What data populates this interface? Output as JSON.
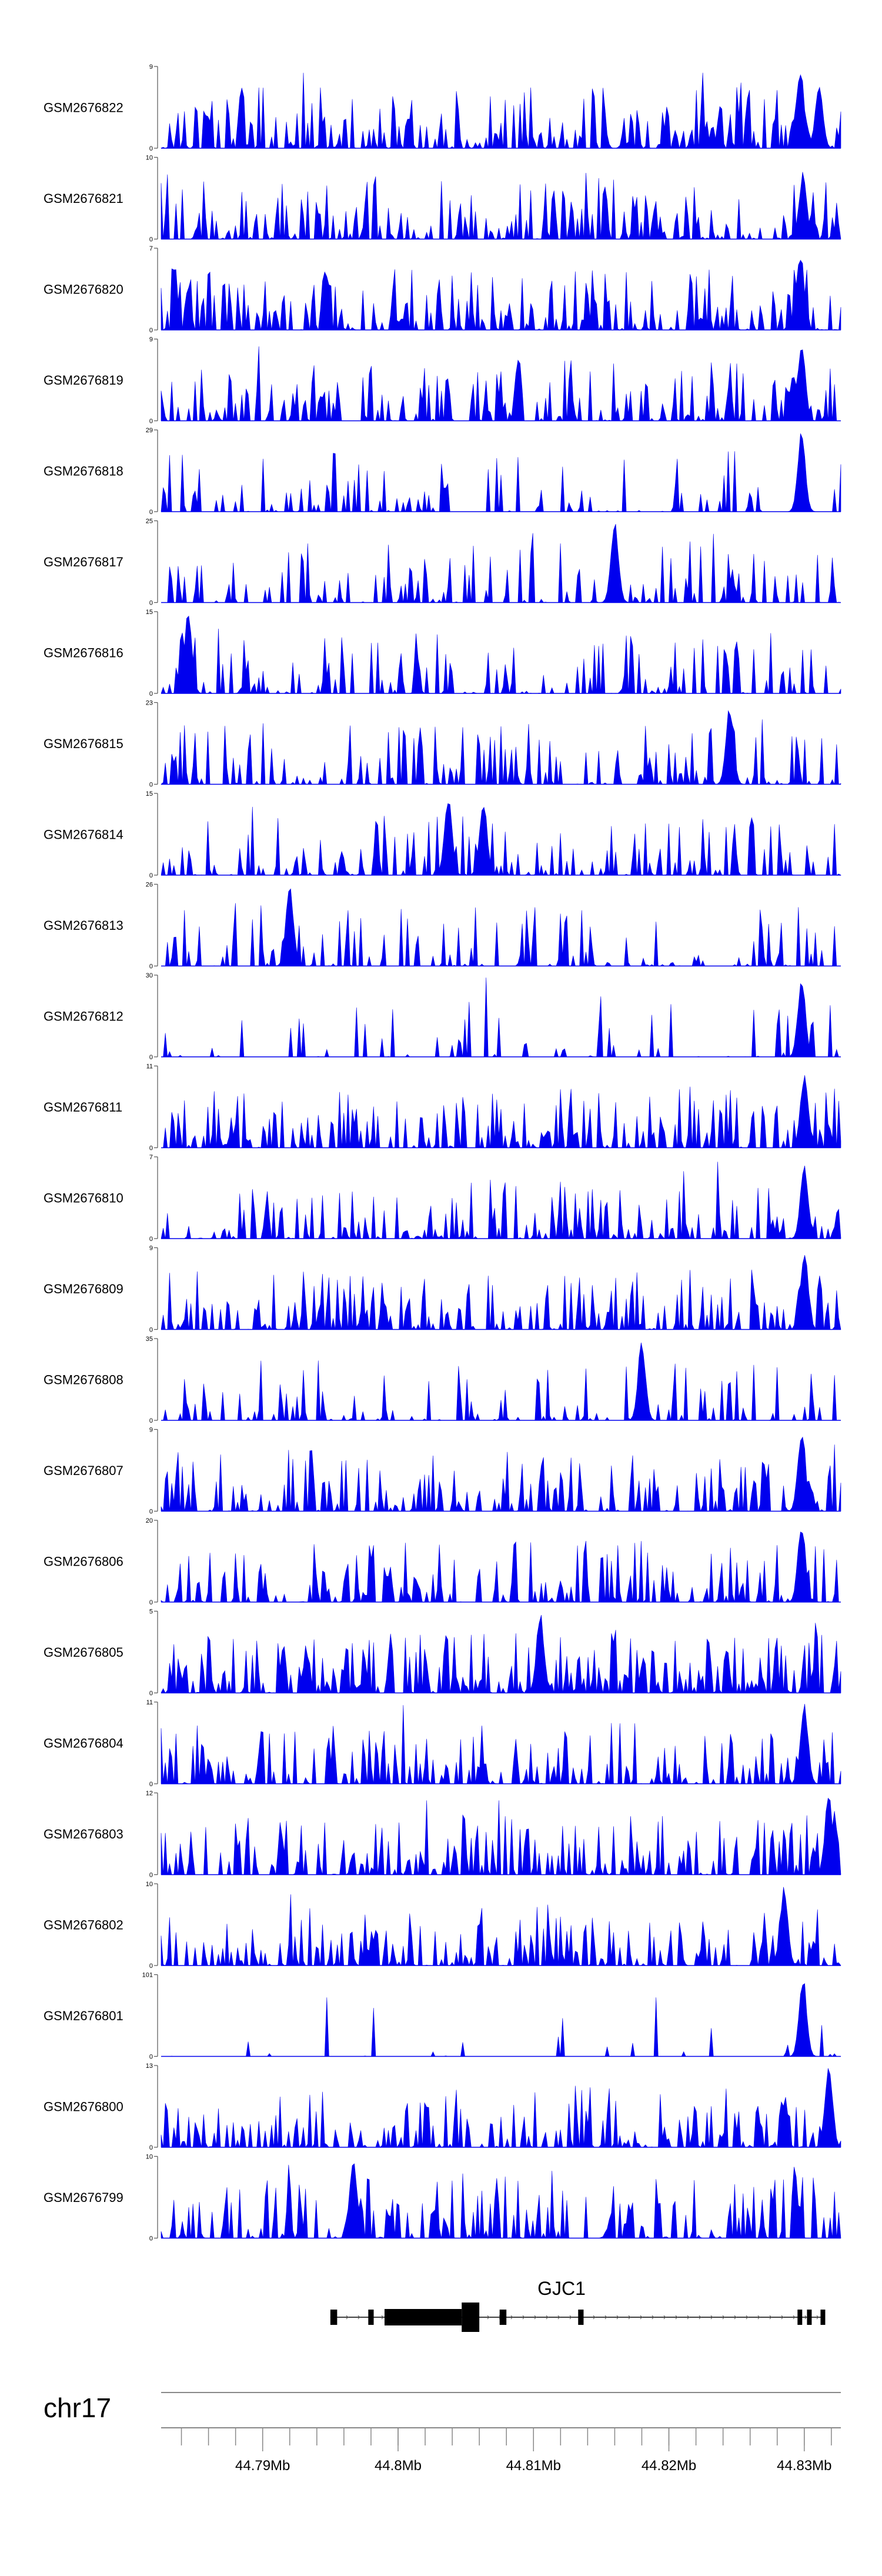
{
  "chart_data": {
    "type": "area",
    "color": "#0000ee",
    "chromosome": "chr17",
    "xlim": [
      44.7825,
      44.8327
    ],
    "x_ticks": [
      {
        "value": 44.79,
        "label": "44.79Mb"
      },
      {
        "value": 44.8,
        "label": "44.8Mb"
      },
      {
        "value": 44.81,
        "label": "44.81Mb"
      },
      {
        "value": 44.82,
        "label": "44.82Mb"
      },
      {
        "value": 44.83,
        "label": "44.83Mb"
      }
    ],
    "minor_tick_step": 0.002,
    "tracks": [
      {
        "name": "GSM2676822",
        "ymax": 9,
        "ymin": 0,
        "density": 0.75,
        "peaks": [
          {
            "x": 44.8297,
            "h": 1.0
          },
          {
            "x": 44.8311,
            "h": 0.8
          }
        ]
      },
      {
        "name": "GSM2676821",
        "ymax": 10,
        "ymin": 0,
        "density": 0.65,
        "peaks": [
          {
            "x": 44.8299,
            "h": 0.85
          }
        ]
      },
      {
        "name": "GSM2676820",
        "ymax": 7,
        "ymin": 0,
        "density": 0.65,
        "peaks": [
          {
            "x": 44.8297,
            "h": 1.0
          }
        ]
      },
      {
        "name": "GSM2676819",
        "ymax": 9,
        "ymin": 0,
        "density": 0.55,
        "peaks": [
          {
            "x": 44.8298,
            "h": 1.0
          },
          {
            "x": 44.8292,
            "h": 0.6
          }
        ]
      },
      {
        "name": "GSM2676818",
        "ymax": 29,
        "ymin": 0,
        "density": 0.3,
        "peaks": [
          {
            "x": 44.8298,
            "h": 1.0
          }
        ]
      },
      {
        "name": "GSM2676817",
        "ymax": 25,
        "ymin": 0,
        "density": 0.4,
        "peaks": [
          {
            "x": 44.816,
            "h": 1.0
          }
        ]
      },
      {
        "name": "GSM2676816",
        "ymax": 15,
        "ymin": 0,
        "density": 0.5,
        "peaks": [
          {
            "x": 44.7845,
            "h": 1.0
          }
        ]
      },
      {
        "name": "GSM2676815",
        "ymax": 23,
        "ymin": 0,
        "density": 0.45,
        "peaks": [
          {
            "x": 44.8245,
            "h": 1.0
          }
        ]
      },
      {
        "name": "GSM2676814",
        "ymax": 15,
        "ymin": 0,
        "density": 0.45,
        "peaks": [
          {
            "x": 44.8037,
            "h": 1.0
          },
          {
            "x": 44.8063,
            "h": 0.95
          }
        ]
      },
      {
        "name": "GSM2676813",
        "ymax": 26,
        "ymin": 0,
        "density": 0.45,
        "peaks": [
          {
            "x": 44.792,
            "h": 1.0
          }
        ]
      },
      {
        "name": "GSM2676812",
        "ymax": 30,
        "ymin": 0,
        "density": 0.2,
        "peaks": [
          {
            "x": 44.8298,
            "h": 1.0
          }
        ]
      },
      {
        "name": "GSM2676811",
        "ymax": 11,
        "ymin": 0,
        "density": 0.6,
        "peaks": [
          {
            "x": 44.83,
            "h": 0.95
          }
        ]
      },
      {
        "name": "GSM2676810",
        "ymax": 7,
        "ymin": 0,
        "density": 0.6,
        "peaks": [
          {
            "x": 44.83,
            "h": 0.95
          }
        ]
      },
      {
        "name": "GSM2676809",
        "ymax": 9,
        "ymin": 0,
        "density": 0.6,
        "peaks": [
          {
            "x": 44.83,
            "h": 1.0
          }
        ]
      },
      {
        "name": "GSM2676808",
        "ymax": 35,
        "ymin": 0,
        "density": 0.35,
        "peaks": [
          {
            "x": 44.818,
            "h": 1.0
          }
        ]
      },
      {
        "name": "GSM2676807",
        "ymax": 9,
        "ymin": 0,
        "density": 0.55,
        "peaks": [
          {
            "x": 44.8298,
            "h": 1.0
          }
        ]
      },
      {
        "name": "GSM2676806",
        "ymax": 20,
        "ymin": 0,
        "density": 0.55,
        "peaks": [
          {
            "x": 44.8298,
            "h": 1.0
          }
        ]
      },
      {
        "name": "GSM2676805",
        "ymax": 5,
        "ymin": 0,
        "density": 0.75,
        "peaks": [
          {
            "x": 44.8105,
            "h": 1.0
          }
        ]
      },
      {
        "name": "GSM2676804",
        "ymax": 11,
        "ymin": 0,
        "density": 0.6,
        "peaks": [
          {
            "x": 44.83,
            "h": 1.0
          }
        ]
      },
      {
        "name": "GSM2676803",
        "ymax": 12,
        "ymin": 0,
        "density": 0.6,
        "peaks": [
          {
            "x": 44.8318,
            "h": 1.0
          }
        ]
      },
      {
        "name": "GSM2676802",
        "ymax": 10,
        "ymin": 0,
        "density": 0.65,
        "peaks": [
          {
            "x": 44.8285,
            "h": 1.0
          }
        ]
      },
      {
        "name": "GSM2676801",
        "ymax": 101,
        "ymin": 0,
        "density": 0.08,
        "peaks": [
          {
            "x": 44.8299,
            "h": 1.0
          }
        ]
      },
      {
        "name": "GSM2676800",
        "ymax": 13,
        "ymin": 0,
        "density": 0.6,
        "peaks": [
          {
            "x": 44.8318,
            "h": 1.0
          }
        ]
      },
      {
        "name": "GSM2676799",
        "ymax": 10,
        "ymin": 0,
        "density": 0.6,
        "peaks": [
          {
            "x": 44.7967,
            "h": 1.0
          }
        ]
      }
    ],
    "gene": {
      "name": "GJC1",
      "start": 44.795,
      "end": 44.8315,
      "exons": [
        {
          "start": 44.795,
          "end": 44.7955,
          "thick": false
        },
        {
          "start": 44.7978,
          "end": 44.7982,
          "thick": false
        },
        {
          "start": 44.799,
          "end": 44.8047,
          "thick": true
        },
        {
          "start": 44.8047,
          "end": 44.806,
          "thick": true
        },
        {
          "start": 44.8075,
          "end": 44.808,
          "thick": false
        },
        {
          "start": 44.8133,
          "end": 44.8137,
          "thick": false
        },
        {
          "start": 44.8295,
          "end": 44.8298,
          "thick": false
        },
        {
          "start": 44.8302,
          "end": 44.8305,
          "thick": false
        },
        {
          "start": 44.8312,
          "end": 44.8315,
          "thick": false
        }
      ]
    }
  }
}
